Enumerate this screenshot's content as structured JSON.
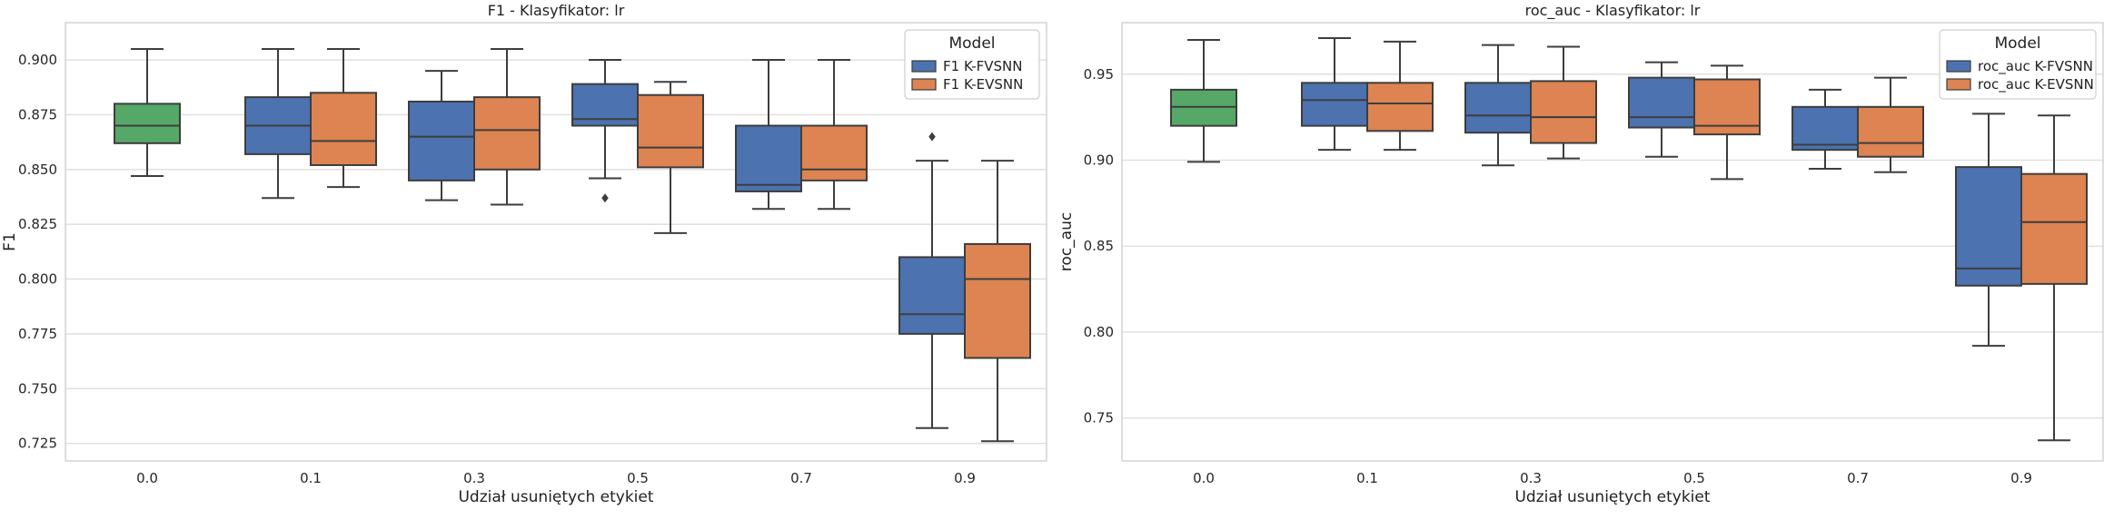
{
  "chart_data": [
    {
      "type": "box",
      "title": "F1 - Klasyfikator: lr",
      "xlabel": "Udział usuniętych etykiet",
      "ylabel": "F1",
      "categories": [
        "0.0",
        "0.1",
        "0.3",
        "0.5",
        "0.7",
        "0.9"
      ],
      "ylim": [
        0.717,
        0.917
      ],
      "yticks": [
        0.725,
        0.75,
        0.775,
        0.8,
        0.825,
        0.85,
        0.875,
        0.9
      ],
      "ytick_labels": [
        "0.725",
        "0.750",
        "0.775",
        "0.800",
        "0.825",
        "0.850",
        "0.875",
        "0.900"
      ],
      "grid": "horizontal",
      "legend": {
        "title": "Model",
        "position": "top-right",
        "entries": [
          "F1 K-FVSNN",
          "F1 K-EVSNN"
        ]
      },
      "baseline": {
        "category": "0.0",
        "min": 0.847,
        "q1": 0.862,
        "median": 0.87,
        "q3": 0.88,
        "max": 0.905
      },
      "series": [
        {
          "name": "F1 K-FVSNN",
          "boxes": [
            null,
            {
              "min": 0.837,
              "q1": 0.857,
              "median": 0.87,
              "q3": 0.883,
              "max": 0.905,
              "outliers": []
            },
            {
              "min": 0.836,
              "q1": 0.845,
              "median": 0.865,
              "q3": 0.881,
              "max": 0.895,
              "outliers": []
            },
            {
              "min": 0.846,
              "q1": 0.87,
              "median": 0.873,
              "q3": 0.889,
              "max": 0.9,
              "outliers": [
                0.837
              ]
            },
            {
              "min": 0.832,
              "q1": 0.84,
              "median": 0.843,
              "q3": 0.87,
              "max": 0.9,
              "outliers": []
            },
            {
              "min": 0.732,
              "q1": 0.775,
              "median": 0.784,
              "q3": 0.81,
              "max": 0.854,
              "outliers": [
                0.865
              ]
            }
          ]
        },
        {
          "name": "F1 K-EVSNN",
          "boxes": [
            null,
            {
              "min": 0.842,
              "q1": 0.852,
              "median": 0.863,
              "q3": 0.885,
              "max": 0.905,
              "outliers": []
            },
            {
              "min": 0.834,
              "q1": 0.85,
              "median": 0.868,
              "q3": 0.883,
              "max": 0.905,
              "outliers": []
            },
            {
              "min": 0.821,
              "q1": 0.851,
              "median": 0.86,
              "q3": 0.884,
              "max": 0.89,
              "outliers": []
            },
            {
              "min": 0.832,
              "q1": 0.845,
              "median": 0.85,
              "q3": 0.87,
              "max": 0.9,
              "outliers": []
            },
            {
              "min": 0.726,
              "q1": 0.764,
              "median": 0.8,
              "q3": 0.816,
              "max": 0.854,
              "outliers": []
            }
          ]
        }
      ]
    },
    {
      "type": "box",
      "title": "roc_auc - Klasyfikator: lr",
      "xlabel": "Udział usuniętych etykiet",
      "ylabel": "roc_auc",
      "categories": [
        "0.0",
        "0.1",
        "0.3",
        "0.5",
        "0.7",
        "0.9"
      ],
      "ylim": [
        0.725,
        0.98
      ],
      "yticks": [
        0.75,
        0.8,
        0.85,
        0.9,
        0.95
      ],
      "ytick_labels": [
        "0.75",
        "0.80",
        "0.85",
        "0.90",
        "0.95"
      ],
      "grid": "horizontal",
      "legend": {
        "title": "Model",
        "position": "top-right",
        "entries": [
          "roc_auc K-FVSNN",
          "roc_auc K-EVSNN"
        ]
      },
      "baseline": {
        "category": "0.0",
        "min": 0.899,
        "q1": 0.92,
        "median": 0.931,
        "q3": 0.941,
        "max": 0.97
      },
      "series": [
        {
          "name": "roc_auc K-FVSNN",
          "boxes": [
            null,
            {
              "min": 0.906,
              "q1": 0.92,
              "median": 0.935,
              "q3": 0.945,
              "max": 0.971,
              "outliers": []
            },
            {
              "min": 0.897,
              "q1": 0.916,
              "median": 0.926,
              "q3": 0.945,
              "max": 0.967,
              "outliers": []
            },
            {
              "min": 0.902,
              "q1": 0.919,
              "median": 0.925,
              "q3": 0.948,
              "max": 0.957,
              "outliers": []
            },
            {
              "min": 0.895,
              "q1": 0.906,
              "median": 0.909,
              "q3": 0.931,
              "max": 0.941,
              "outliers": []
            },
            {
              "min": 0.792,
              "q1": 0.827,
              "median": 0.837,
              "q3": 0.896,
              "max": 0.927,
              "outliers": []
            }
          ]
        },
        {
          "name": "roc_auc K-EVSNN",
          "boxes": [
            null,
            {
              "min": 0.906,
              "q1": 0.917,
              "median": 0.933,
              "q3": 0.945,
              "max": 0.969,
              "outliers": []
            },
            {
              "min": 0.901,
              "q1": 0.91,
              "median": 0.925,
              "q3": 0.946,
              "max": 0.966,
              "outliers": []
            },
            {
              "min": 0.889,
              "q1": 0.915,
              "median": 0.92,
              "q3": 0.947,
              "max": 0.955,
              "outliers": []
            },
            {
              "min": 0.893,
              "q1": 0.902,
              "median": 0.91,
              "q3": 0.931,
              "max": 0.948,
              "outliers": []
            },
            {
              "min": 0.737,
              "q1": 0.828,
              "median": 0.864,
              "q3": 0.892,
              "max": 0.926,
              "outliers": []
            }
          ]
        }
      ]
    }
  ],
  "colors": {
    "baseline": "#55a868",
    "series": [
      "#4c72b0",
      "#dd8452"
    ],
    "edge": "#3d3d3d",
    "grid": "#dddddd",
    "frame": "#cccccc"
  }
}
